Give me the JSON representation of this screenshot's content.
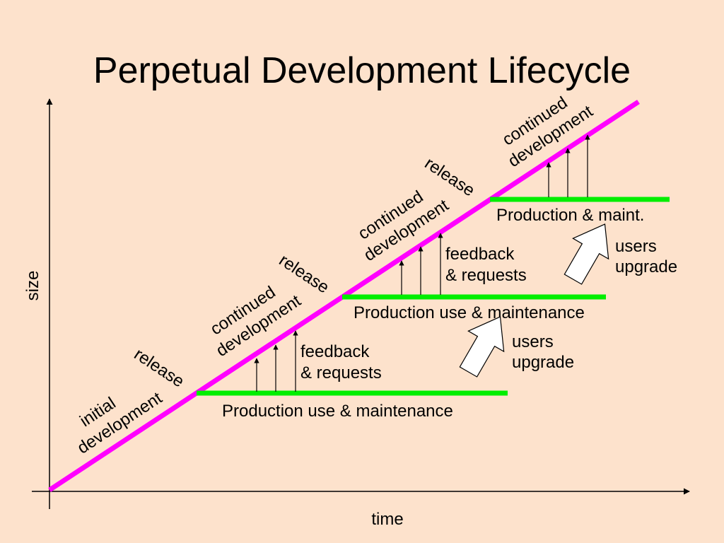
{
  "title": "Perpetual Development Lifecycle",
  "axes": {
    "y_label": "size",
    "x_label": "time"
  },
  "colors": {
    "background": "#fde2cc",
    "diagonal": "#ff00ff",
    "production": "#00ee00",
    "ink": "#000000"
  },
  "diagonal_labels": {
    "initial_line1": "initial",
    "initial_line2": "development",
    "release": "release",
    "continued_line1": "continued",
    "continued_line2": "development"
  },
  "production": {
    "level1": "Production use & maintenance",
    "level2": "Production use & maintenance",
    "level3": "Production & maint."
  },
  "feedback": {
    "line1": "feedback",
    "line2": "& requests"
  },
  "upgrade": {
    "line1": "users",
    "line2": "upgrade"
  }
}
